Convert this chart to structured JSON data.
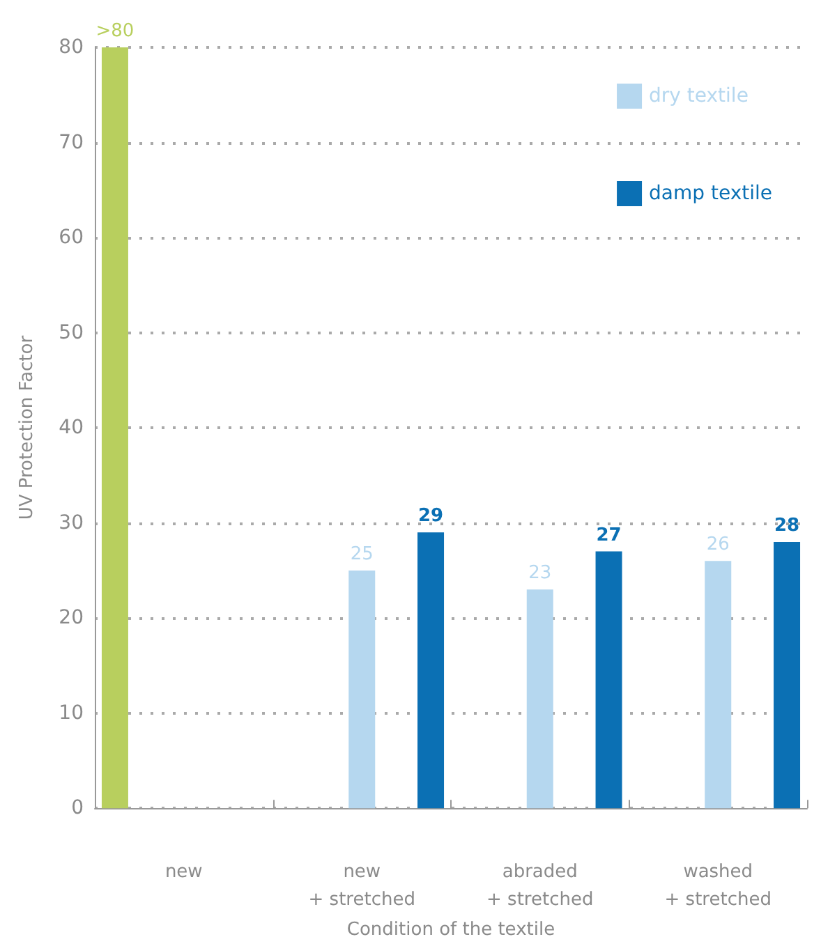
{
  "chart_data": {
    "type": "bar",
    "xlabel": "Condition of the textile",
    "ylabel": "UV Protection Factor",
    "categories": [
      "new",
      "new\n+ stretched",
      "abraded\n+ stretched",
      "washed\n+ stretched"
    ],
    "series": [
      {
        "color": "#b8cf5e",
        "values": [
          80,
          null,
          null,
          null
        ],
        "value_labels": [
          ">80",
          null,
          null,
          null
        ]
      },
      {
        "name": "dry textile",
        "color": "#b5d7ef",
        "values": [
          null,
          25,
          23,
          26
        ],
        "value_labels": [
          null,
          "25",
          "23",
          "26"
        ]
      },
      {
        "name": "damp textile",
        "color": "#0b70b4",
        "values": [
          null,
          29,
          27,
          28
        ],
        "value_labels": [
          null,
          "29",
          "27",
          "28"
        ]
      }
    ],
    "ylim": [
      0,
      80
    ],
    "yticks": [
      0,
      10,
      20,
      30,
      40,
      50,
      60,
      70,
      80
    ],
    "grid": "y",
    "legend": "top right"
  }
}
